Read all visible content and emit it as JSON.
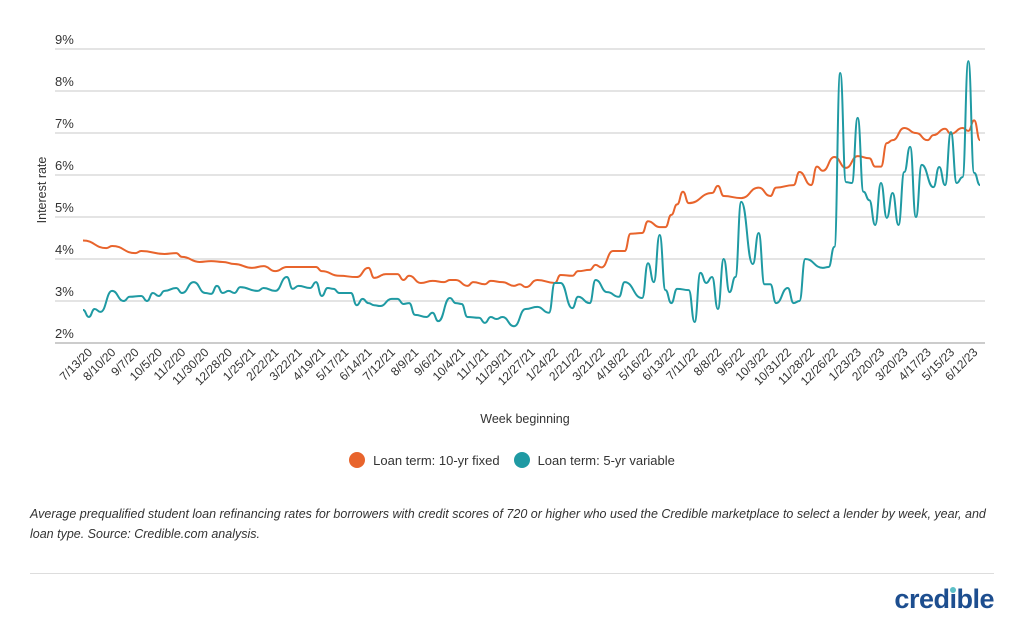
{
  "chart_data": {
    "type": "line",
    "xlabel": "Week beginning",
    "ylabel": "Interest rate",
    "ylim": [
      2,
      9
    ],
    "yticks": [
      "2%",
      "3%",
      "4%",
      "5%",
      "6%",
      "7%",
      "8%",
      "9%"
    ],
    "xlim": [
      "7/13/20",
      "6/26/23"
    ],
    "xticks": [
      "7/13/20",
      "8/10/20",
      "9/7/20",
      "10/5/20",
      "11/2/20",
      "11/30/20",
      "12/28/20",
      "1/25/21",
      "2/22/21",
      "3/22/21",
      "4/19/21",
      "5/17/21",
      "6/14/21",
      "7/12/21",
      "8/9/21",
      "9/6/21",
      "10/4/21",
      "11/1/21",
      "11/29/21",
      "12/27/21",
      "1/24/22",
      "2/21/22",
      "3/21/22",
      "4/18/22",
      "5/16/22",
      "6/13/22",
      "7/11/22",
      "8/8/22",
      "9/5/22",
      "10/3/22",
      "10/31/22",
      "11/28/22",
      "12/26/22",
      "1/23/23",
      "2/20/23",
      "3/20/23",
      "4/17/23",
      "5/15/23",
      "6/12/23"
    ],
    "grid": "horizontal",
    "legend_position": "bottom",
    "series": [
      {
        "name": "Loan term: 10-yr fixed",
        "color": "#e8642c",
        "points": [
          [
            "7/13/20",
            4.44
          ],
          [
            "8/10/20",
            4.26
          ],
          [
            "8/17/20",
            4.31
          ],
          [
            "9/14/20",
            4.14
          ],
          [
            "9/21/20",
            4.19
          ],
          [
            "10/19/20",
            4.12
          ],
          [
            "11/2/20",
            4.14
          ],
          [
            "11/9/20",
            4.05
          ],
          [
            "11/30/20",
            3.93
          ],
          [
            "12/14/20",
            3.95
          ],
          [
            "12/28/20",
            3.93
          ],
          [
            "1/11/21",
            3.88
          ],
          [
            "2/1/21",
            3.79
          ],
          [
            "2/15/21",
            3.83
          ],
          [
            "3/1/21",
            3.71
          ],
          [
            "3/15/21",
            3.81
          ],
          [
            "4/5/21",
            3.81
          ],
          [
            "4/19/21",
            3.81
          ],
          [
            "4/26/21",
            3.71
          ],
          [
            "5/17/21",
            3.6
          ],
          [
            "6/7/21",
            3.57
          ],
          [
            "6/21/21",
            3.79
          ],
          [
            "6/28/21",
            3.55
          ],
          [
            "7/12/21",
            3.64
          ],
          [
            "7/26/21",
            3.64
          ],
          [
            "8/2/21",
            3.5
          ],
          [
            "8/9/21",
            3.6
          ],
          [
            "8/23/21",
            3.43
          ],
          [
            "9/6/21",
            3.48
          ],
          [
            "9/20/21",
            3.45
          ],
          [
            "9/27/21",
            3.5
          ],
          [
            "10/4/21",
            3.5
          ],
          [
            "10/18/21",
            3.36
          ],
          [
            "10/25/21",
            3.45
          ],
          [
            "11/8/21",
            3.4
          ],
          [
            "11/15/21",
            3.48
          ],
          [
            "11/29/21",
            3.45
          ],
          [
            "12/13/21",
            3.36
          ],
          [
            "12/20/21",
            3.4
          ],
          [
            "12/27/21",
            3.33
          ],
          [
            "1/10/22",
            3.5
          ],
          [
            "1/31/22",
            3.43
          ],
          [
            "2/7/22",
            3.62
          ],
          [
            "2/21/22",
            3.6
          ],
          [
            "2/28/22",
            3.71
          ],
          [
            "3/14/22",
            3.74
          ],
          [
            "3/21/22",
            3.86
          ],
          [
            "3/28/22",
            3.8
          ],
          [
            "4/11/22",
            4.19
          ],
          [
            "4/25/22",
            4.19
          ],
          [
            "5/2/22",
            4.6
          ],
          [
            "5/16/22",
            4.62
          ],
          [
            "5/23/22",
            4.9
          ],
          [
            "6/6/22",
            4.76
          ],
          [
            "6/13/22",
            4.76
          ],
          [
            "6/20/22",
            5.05
          ],
          [
            "6/27/22",
            5.3
          ],
          [
            "7/4/22",
            5.6
          ],
          [
            "7/11/22",
            5.33
          ],
          [
            "8/8/22",
            5.57
          ],
          [
            "8/15/22",
            5.74
          ],
          [
            "8/22/22",
            5.5
          ],
          [
            "9/12/22",
            5.45
          ],
          [
            "10/3/22",
            5.7
          ],
          [
            "10/17/22",
            5.5
          ],
          [
            "10/24/22",
            5.7
          ],
          [
            "11/14/22",
            5.76
          ],
          [
            "11/21/22",
            6.07
          ],
          [
            "12/5/22",
            5.76
          ],
          [
            "12/12/22",
            6.2
          ],
          [
            "12/19/22",
            6.1
          ],
          [
            "1/2/23",
            6.43
          ],
          [
            "1/16/23",
            6.17
          ],
          [
            "1/30/23",
            6.45
          ],
          [
            "2/13/23",
            6.4
          ],
          [
            "2/20/23",
            6.2
          ],
          [
            "2/27/23",
            6.2
          ],
          [
            "3/6/23",
            6.76
          ],
          [
            "3/13/23",
            6.83
          ],
          [
            "3/27/23",
            7.12
          ],
          [
            "4/10/23",
            7.0
          ],
          [
            "4/24/23",
            6.83
          ],
          [
            "5/1/23",
            6.95
          ],
          [
            "5/15/23",
            7.1
          ],
          [
            "5/22/23",
            6.98
          ],
          [
            "6/5/23",
            7.12
          ],
          [
            "6/12/23",
            7.05
          ],
          [
            "6/19/23",
            7.3
          ],
          [
            "6/26/23",
            6.83
          ]
        ]
      },
      {
        "name": "Loan term: 5-yr variable",
        "color": "#1f9aa3",
        "points": [
          [
            "7/13/20",
            2.79
          ],
          [
            "7/20/20",
            2.62
          ],
          [
            "7/27/20",
            2.81
          ],
          [
            "8/3/20",
            2.74
          ],
          [
            "8/17/20",
            3.24
          ],
          [
            "8/31/20",
            3.0
          ],
          [
            "9/7/20",
            3.1
          ],
          [
            "9/21/20",
            3.12
          ],
          [
            "9/28/20",
            3.0
          ],
          [
            "10/5/20",
            3.19
          ],
          [
            "10/12/20",
            3.12
          ],
          [
            "10/19/20",
            3.24
          ],
          [
            "11/2/20",
            3.31
          ],
          [
            "11/9/20",
            3.19
          ],
          [
            "11/23/20",
            3.45
          ],
          [
            "12/7/20",
            3.19
          ],
          [
            "12/14/20",
            3.17
          ],
          [
            "12/21/20",
            3.36
          ],
          [
            "12/28/20",
            3.19
          ],
          [
            "1/4/21",
            3.24
          ],
          [
            "1/11/21",
            3.19
          ],
          [
            "1/18/21",
            3.33
          ],
          [
            "2/8/21",
            3.24
          ],
          [
            "2/15/21",
            3.31
          ],
          [
            "3/1/21",
            3.24
          ],
          [
            "3/15/21",
            3.57
          ],
          [
            "3/22/21",
            3.29
          ],
          [
            "3/29/21",
            3.36
          ],
          [
            "4/12/21",
            3.31
          ],
          [
            "4/19/21",
            3.45
          ],
          [
            "4/26/21",
            3.12
          ],
          [
            "5/3/21",
            3.31
          ],
          [
            "5/10/21",
            3.29
          ],
          [
            "5/17/21",
            3.19
          ],
          [
            "5/31/21",
            3.19
          ],
          [
            "6/7/21",
            2.9
          ],
          [
            "6/14/21",
            3.05
          ],
          [
            "6/21/21",
            2.95
          ],
          [
            "6/28/21",
            2.9
          ],
          [
            "7/5/21",
            2.88
          ],
          [
            "7/19/21",
            3.05
          ],
          [
            "7/26/21",
            3.05
          ],
          [
            "8/2/21",
            2.93
          ],
          [
            "8/9/21",
            2.95
          ],
          [
            "8/16/21",
            2.67
          ],
          [
            "8/30/21",
            2.62
          ],
          [
            "9/6/21",
            2.72
          ],
          [
            "9/13/21",
            2.52
          ],
          [
            "9/27/21",
            3.07
          ],
          [
            "10/4/21",
            2.95
          ],
          [
            "10/11/21",
            2.93
          ],
          [
            "10/18/21",
            2.62
          ],
          [
            "11/1/21",
            2.6
          ],
          [
            "11/8/21",
            2.48
          ],
          [
            "11/15/21",
            2.62
          ],
          [
            "11/22/21",
            2.57
          ],
          [
            "11/29/21",
            2.62
          ],
          [
            "12/13/21",
            2.4
          ],
          [
            "12/27/21",
            2.81
          ],
          [
            "1/10/22",
            2.86
          ],
          [
            "1/24/22",
            2.72
          ],
          [
            "1/31/22",
            3.43
          ],
          [
            "2/7/22",
            3.43
          ],
          [
            "2/21/22",
            2.83
          ],
          [
            "2/28/22",
            3.1
          ],
          [
            "3/14/22",
            2.95
          ],
          [
            "3/21/22",
            3.5
          ],
          [
            "4/4/22",
            3.21
          ],
          [
            "4/18/22",
            3.1
          ],
          [
            "4/25/22",
            3.45
          ],
          [
            "5/16/22",
            3.07
          ],
          [
            "5/23/22",
            3.9
          ],
          [
            "5/30/22",
            3.45
          ],
          [
            "6/6/22",
            4.57
          ],
          [
            "6/13/22",
            3.26
          ],
          [
            "6/20/22",
            2.95
          ],
          [
            "6/27/22",
            3.29
          ],
          [
            "7/11/22",
            3.26
          ],
          [
            "7/18/22",
            2.5
          ],
          [
            "7/25/22",
            3.67
          ],
          [
            "8/1/22",
            3.43
          ],
          [
            "8/8/22",
            3.57
          ],
          [
            "8/15/22",
            2.81
          ],
          [
            "8/22/22",
            4.0
          ],
          [
            "8/29/22",
            3.21
          ],
          [
            "9/5/22",
            3.57
          ],
          [
            "9/12/22",
            5.36
          ],
          [
            "9/26/22",
            3.88
          ],
          [
            "10/3/22",
            4.62
          ],
          [
            "10/10/22",
            3.4
          ],
          [
            "10/17/22",
            3.4
          ],
          [
            "10/24/22",
            2.95
          ],
          [
            "11/7/22",
            3.31
          ],
          [
            "11/14/22",
            2.95
          ],
          [
            "11/21/22",
            3.0
          ],
          [
            "11/28/22",
            4.0
          ],
          [
            "12/19/22",
            3.79
          ],
          [
            "12/26/22",
            3.81
          ],
          [
            "1/2/23",
            4.29
          ],
          [
            "1/9/23",
            8.43
          ],
          [
            "1/16/23",
            5.83
          ],
          [
            "1/23/23",
            5.81
          ],
          [
            "1/30/23",
            7.36
          ],
          [
            "2/6/23",
            5.6
          ],
          [
            "2/13/23",
            5.4
          ],
          [
            "2/20/23",
            4.81
          ],
          [
            "2/27/23",
            5.81
          ],
          [
            "3/6/23",
            4.98
          ],
          [
            "3/13/23",
            5.57
          ],
          [
            "3/20/23",
            4.81
          ],
          [
            "3/27/23",
            6.07
          ],
          [
            "4/3/23",
            6.67
          ],
          [
            "4/10/23",
            5.0
          ],
          [
            "4/17/23",
            6.24
          ],
          [
            "5/1/23",
            5.71
          ],
          [
            "5/8/23",
            6.19
          ],
          [
            "5/15/23",
            5.76
          ],
          [
            "5/22/23",
            7.02
          ],
          [
            "5/29/23",
            5.81
          ],
          [
            "6/5/23",
            5.95
          ],
          [
            "6/12/23",
            8.71
          ],
          [
            "6/19/23",
            6.05
          ],
          [
            "6/26/23",
            5.76
          ]
        ]
      }
    ]
  },
  "caption": "Average prequalified student loan refinancing rates for borrowers with credit scores of 720 or higher who used the Credible marketplace to select a lender by week, year, and loan type. Source: Credible.com analysis.",
  "logo": {
    "text": "credible",
    "color": "#1d4e8f",
    "dot_color": "#5cc0c8"
  }
}
